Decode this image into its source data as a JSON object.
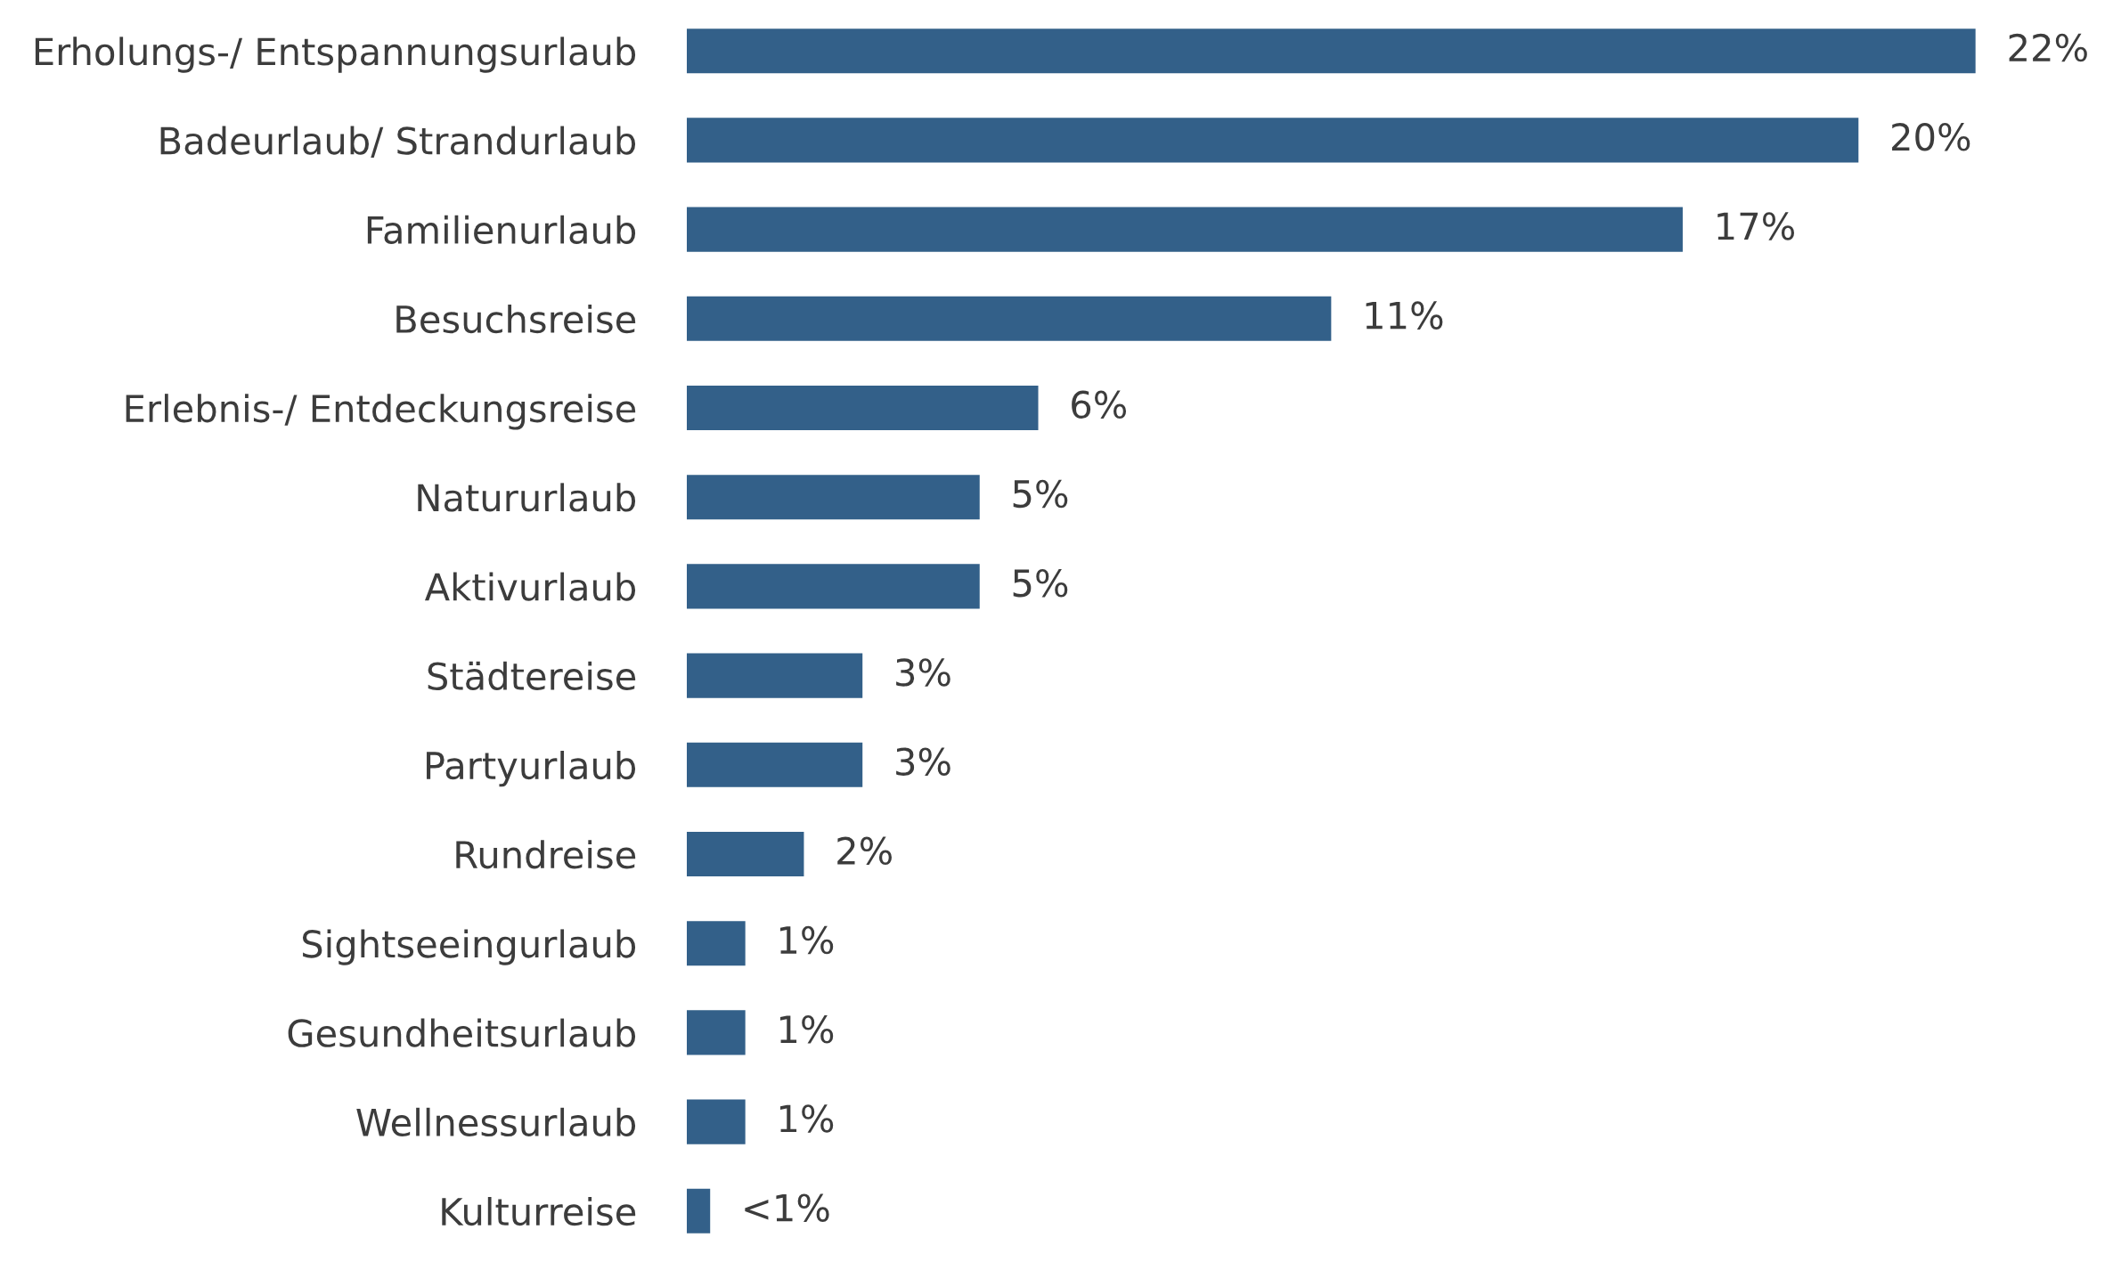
{
  "chart_data": {
    "type": "bar",
    "orientation": "horizontal",
    "categories": [
      "Erholungs-/ Entspannungsurlaub",
      "Badeurlaub/ Strandurlaub",
      "Familienurlaub",
      "Besuchsreise",
      "Erlebnis-/ Entdeckungsreise",
      "Natururlaub",
      "Aktivurlaub",
      "Städtereise",
      "Partyurlaub",
      "Rundreise",
      "Sightseeingurlaub",
      "Gesundheitsurlaub",
      "Wellnessurlaub",
      "Kulturreise"
    ],
    "values": [
      22,
      20,
      17,
      11,
      6,
      5,
      5,
      3,
      3,
      2,
      1,
      1,
      1,
      0.4
    ],
    "value_labels": [
      "22%",
      "20%",
      "17%",
      "11%",
      "6%",
      "5%",
      "5%",
      "3%",
      "3%",
      "2%",
      "1%",
      "1%",
      "1%",
      "<1%"
    ],
    "color": "#336089",
    "grid": false,
    "legend": false
  }
}
